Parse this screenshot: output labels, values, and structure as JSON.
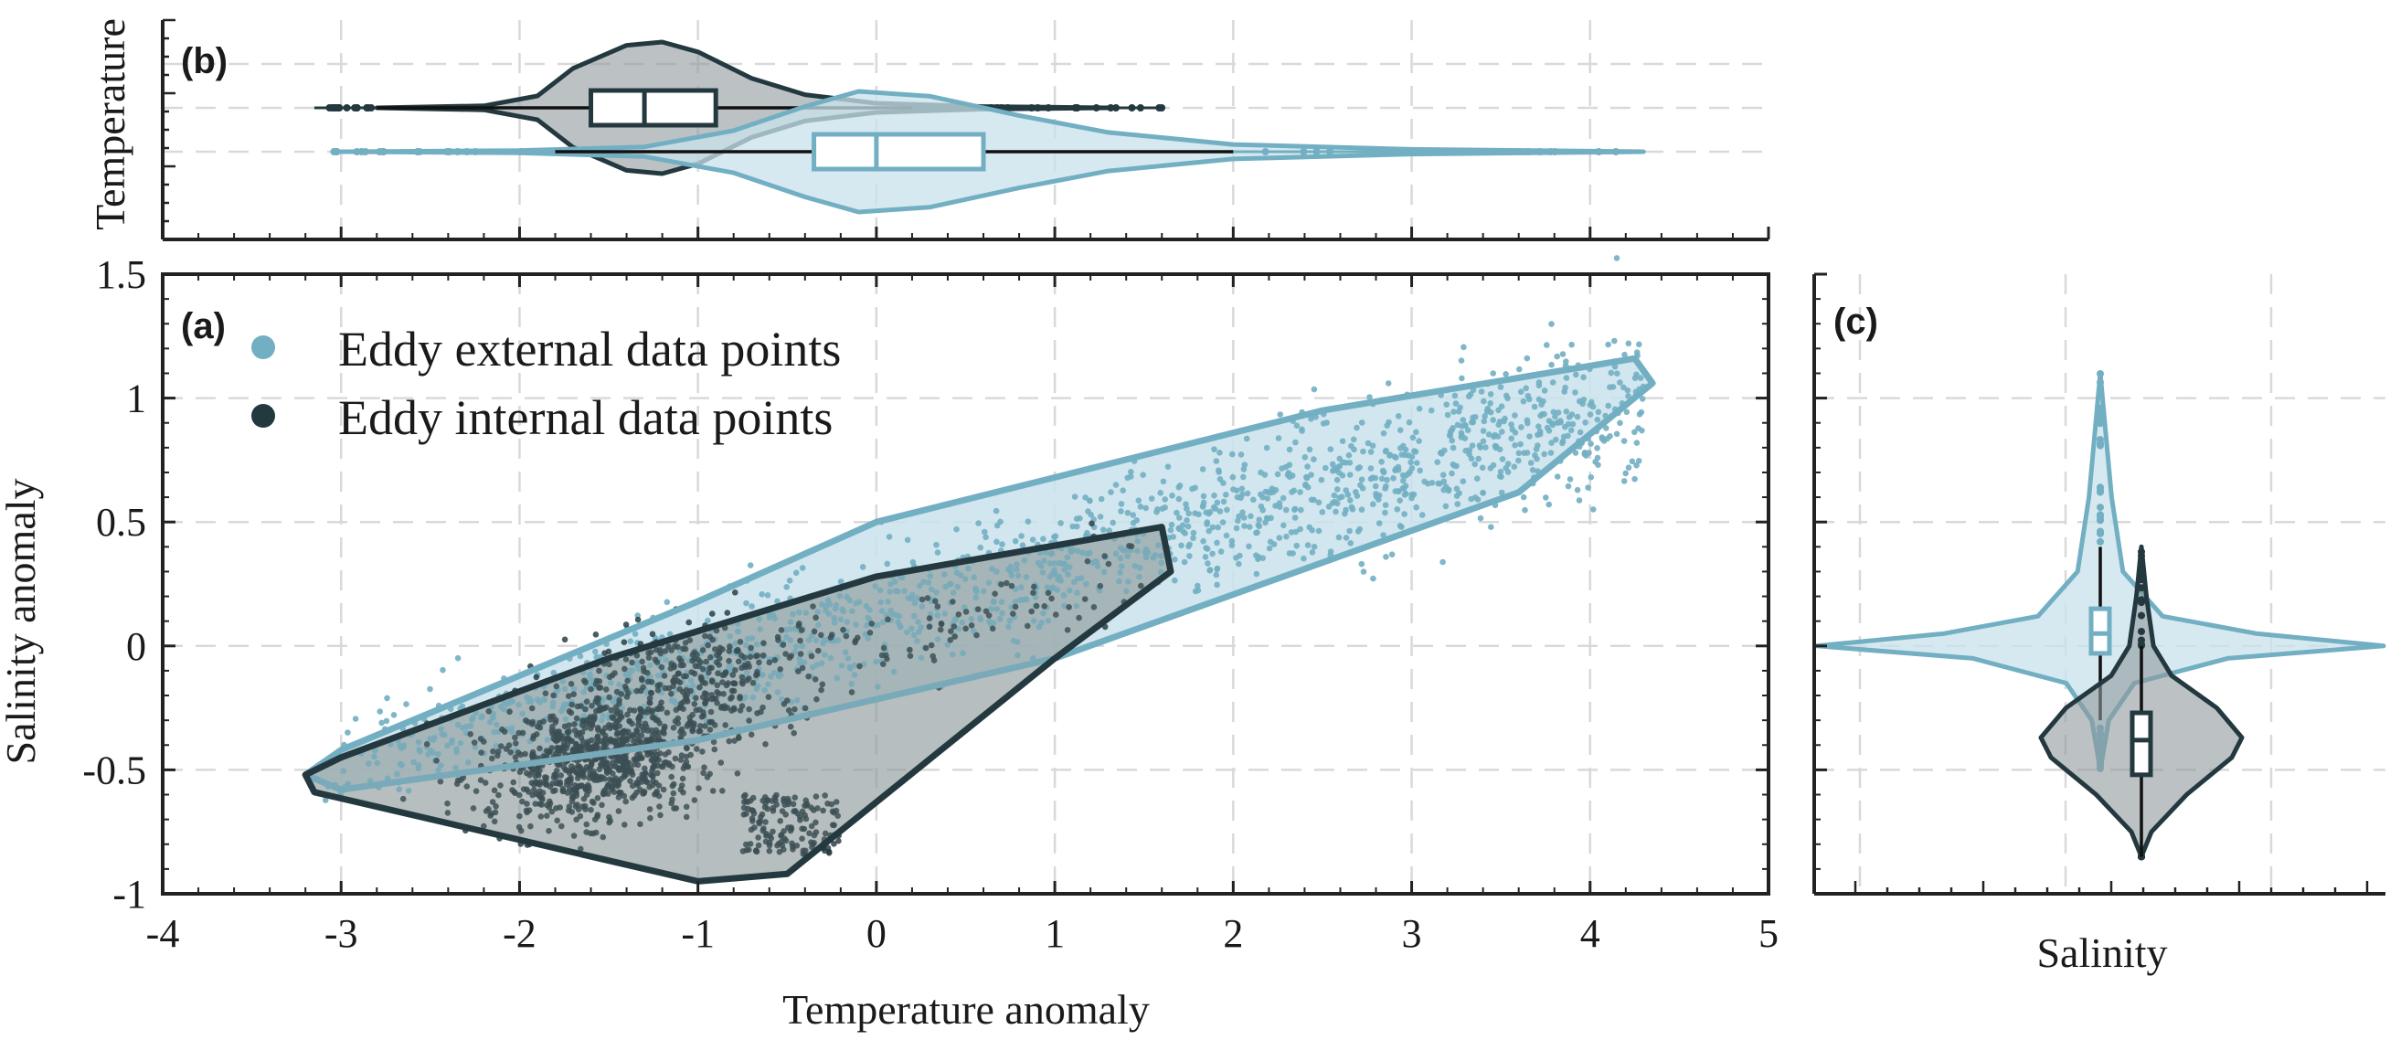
{
  "colors": {
    "external": "#72afc2",
    "external_fill": "#c9e2eb",
    "internal": "#23393f",
    "internal_fill": "#8f9a9c",
    "grid": "#d9d9d9",
    "axis": "#222222"
  },
  "chart_data": [
    {
      "panel": "(a)",
      "type": "scatter",
      "xlabel": "Temperature anomaly",
      "ylabel": "Salinity anomaly",
      "xlim": [
        -4,
        5
      ],
      "ylim": [
        -1,
        1.5
      ],
      "xticks": [
        "-4",
        "-3",
        "-2",
        "-1",
        "0",
        "1",
        "2",
        "3",
        "4",
        "5"
      ],
      "yticks": [
        "-1",
        "-0.5",
        "0",
        "0.5",
        "1",
        "1.5"
      ],
      "grid": true,
      "legend_position": "top-left",
      "series": [
        {
          "name": "Eddy external data points",
          "color_key": "external",
          "cloud": {
            "t_range": [
              -3.1,
              4.3
            ],
            "s_at_t_min": -0.5,
            "s_at_t_max": 1.0,
            "band_spread": 0.16
          },
          "hull": [
            [
              -3.2,
              -0.52
            ],
            [
              -3.0,
              -0.42
            ],
            [
              -1.0,
              0.18
            ],
            [
              0.0,
              0.5
            ],
            [
              2.5,
              0.95
            ],
            [
              4.25,
              1.16
            ],
            [
              4.35,
              1.06
            ],
            [
              3.6,
              0.62
            ],
            [
              1.0,
              -0.05
            ],
            [
              -1.0,
              -0.38
            ],
            [
              -3.0,
              -0.58
            ]
          ]
        },
        {
          "name": "Eddy internal data points",
          "color_key": "internal",
          "cloud": {
            "t_range": [
              -3.1,
              1.6
            ],
            "core_t": [
              -2.0,
              -0.6
            ],
            "core_s": [
              -0.85,
              0.2
            ]
          },
          "hull": [
            [
              -3.2,
              -0.52
            ],
            [
              -3.0,
              -0.45
            ],
            [
              -1.5,
              -0.05
            ],
            [
              0.0,
              0.28
            ],
            [
              1.6,
              0.48
            ],
            [
              1.65,
              0.3
            ],
            [
              1.0,
              -0.05
            ],
            [
              -0.5,
              -0.92
            ],
            [
              -1.0,
              -0.95
            ],
            [
              -3.15,
              -0.59
            ]
          ]
        }
      ]
    },
    {
      "panel": "(b)",
      "type": "violin",
      "orientation": "horizontal",
      "ylabel": "Temperature",
      "xlim": [
        -4,
        5
      ],
      "series": [
        {
          "name": "Eddy internal data points",
          "color_key": "internal",
          "q1": -1.6,
          "median": -1.3,
          "q3": -0.9,
          "whisker_low": -2.8,
          "whisker_high": 0.2,
          "min": -3.15,
          "max": 1.6
        },
        {
          "name": "Eddy external data points",
          "color_key": "external",
          "q1": -0.35,
          "median": 0.0,
          "q3": 0.6,
          "whisker_low": -1.8,
          "whisker_high": 2.0,
          "min": -3.05,
          "max": 4.3
        }
      ]
    },
    {
      "panel": "(c)",
      "type": "violin",
      "orientation": "vertical",
      "xlabel": "Salinity",
      "ylim": [
        -1,
        1.5
      ],
      "series": [
        {
          "name": "Eddy external data points",
          "color_key": "external",
          "q1": -0.03,
          "median": 0.05,
          "q3": 0.15,
          "whisker_low": -0.3,
          "whisker_high": 0.4,
          "min": -0.5,
          "max": 1.1
        },
        {
          "name": "Eddy internal data points",
          "color_key": "internal",
          "q1": -0.52,
          "median": -0.38,
          "q3": -0.27,
          "whisker_low": -0.85,
          "whisker_high": 0.0,
          "min": -0.85,
          "max": 0.4
        }
      ]
    }
  ]
}
